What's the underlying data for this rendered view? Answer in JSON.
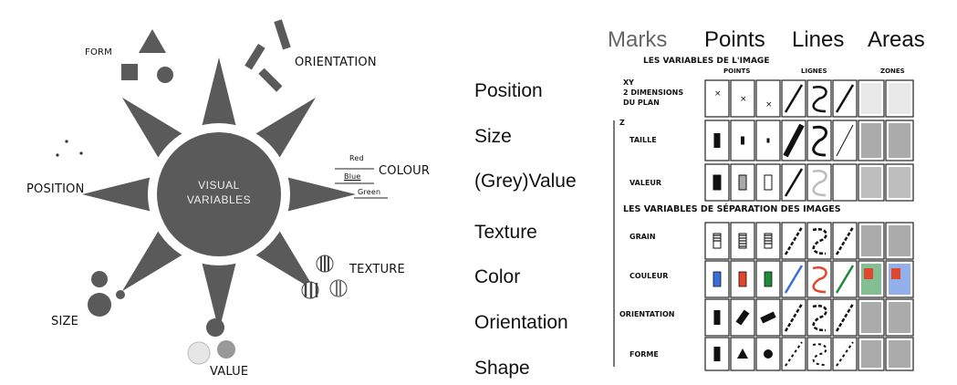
{
  "left_diagram": {
    "center_label_line1": "VISUAL",
    "center_label_line2": "VARIABLES",
    "spokes": {
      "form": "FORM",
      "orientation": "ORIENTATION",
      "colour": "COLOUR",
      "texture": "TEXTURE",
      "value": "VALUE",
      "size": "SIZE",
      "position": "POSITION"
    },
    "colour_swatch_labels": [
      "Red",
      "Blue",
      "Green"
    ]
  },
  "variables": [
    "Position",
    "Size",
    "(Grey)Value",
    "Texture",
    "Color",
    "Orientation",
    "Shape"
  ],
  "header": {
    "marks": "Marks",
    "points": "Points",
    "lines": "Lines",
    "areas": "Areas"
  },
  "bertin": {
    "title_top": "LES VARIABLES DE L'IMAGE",
    "col_points": "POINTS",
    "col_lines": "LIGNES",
    "col_zones": "ZONES",
    "xy_line1": "XY",
    "xy_line2": "2 DIMENSIONS",
    "xy_line3": "DU PLAN",
    "z_label": "Z",
    "rows_image": [
      "TAILLE",
      "VALEUR"
    ],
    "title_separation": "LES VARIABLES DE SÉPARATION DES IMAGES",
    "rows_separation": [
      "GRAIN",
      "COULEUR",
      "ORIENTATION",
      "FORME"
    ]
  },
  "colors": {
    "dark_grey": "#5a5a5a",
    "light_grey": "#bbbbbb",
    "blue": "#3b6fd8",
    "red": "#e0472c",
    "green": "#1f8a3a"
  }
}
